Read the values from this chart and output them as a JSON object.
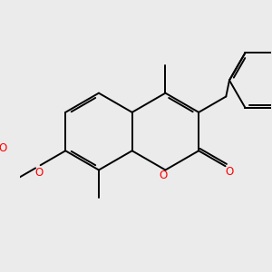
{
  "bg_color": "#ebebeb",
  "bond_color": "#000000",
  "oxygen_color": "#ff0000",
  "bond_lw": 1.4,
  "dbo": 0.055,
  "figsize": [
    3.0,
    3.0
  ],
  "dpi": 100,
  "xlim": [
    -2.8,
    2.8
  ],
  "ylim": [
    -2.1,
    2.1
  ]
}
